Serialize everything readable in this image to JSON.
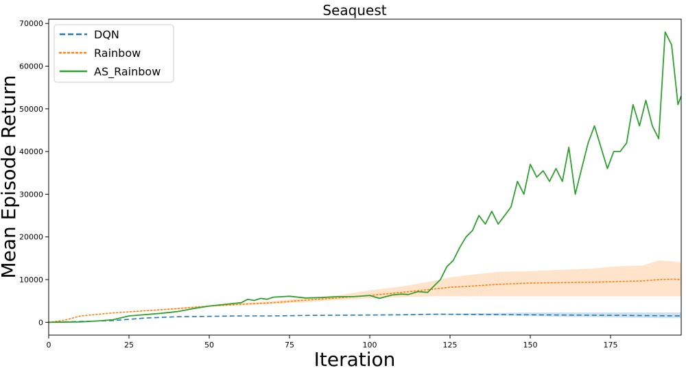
{
  "chart_data": {
    "type": "line",
    "title": "Seaquest",
    "xlabel": "Iteration",
    "ylabel": "Mean Episode Return",
    "xlim": [
      0,
      197
    ],
    "ylim": [
      -3000,
      71000
    ],
    "x_ticks": [
      0,
      25,
      50,
      75,
      100,
      125,
      150,
      175
    ],
    "y_ticks": [
      0,
      10000,
      20000,
      30000,
      40000,
      50000,
      60000,
      70000
    ],
    "grid": false,
    "legend": "top-left",
    "series": [
      {
        "name": "DQN",
        "style": "dashed",
        "color": "#1f77b4",
        "x": [
          0,
          10,
          20,
          30,
          40,
          50,
          60,
          70,
          80,
          90,
          100,
          110,
          120,
          130,
          140,
          150,
          160,
          170,
          180,
          190,
          197
        ],
        "values": [
          0,
          200,
          400,
          1000,
          1300,
          1400,
          1500,
          1500,
          1600,
          1650,
          1700,
          1750,
          1900,
          1850,
          1800,
          1750,
          1700,
          1650,
          1600,
          1550,
          1500
        ],
        "band_lower": [
          0,
          200,
          400,
          1000,
          1300,
          1400,
          1500,
          1500,
          1600,
          1650,
          1700,
          1700,
          1800,
          1700,
          1600,
          1500,
          1300,
          1200,
          1100,
          1000,
          1000
        ],
        "band_upper": [
          0,
          200,
          400,
          1000,
          1300,
          1400,
          1500,
          1500,
          1600,
          1650,
          1700,
          1800,
          2000,
          2100,
          2200,
          2300,
          2300,
          2300,
          2300,
          2300,
          2300
        ]
      },
      {
        "name": "Rainbow",
        "style": "dotted",
        "color": "#ff7f0e",
        "x": [
          0,
          5,
          10,
          20,
          30,
          40,
          50,
          60,
          70,
          80,
          90,
          100,
          110,
          120,
          125,
          130,
          140,
          150,
          160,
          170,
          175,
          180,
          185,
          190,
          195,
          197
        ],
        "values": [
          0,
          500,
          1500,
          2200,
          2700,
          3200,
          3800,
          4200,
          4600,
          5200,
          5700,
          6300,
          7000,
          7800,
          8200,
          8400,
          8900,
          9200,
          9300,
          9400,
          9500,
          9600,
          9700,
          10000,
          10100,
          10000
        ],
        "band_lower": [
          0,
          500,
          1500,
          2200,
          2600,
          3000,
          3600,
          4000,
          4300,
          4700,
          5200,
          5600,
          5900,
          6100,
          6100,
          6100,
          6100,
          6100,
          6100,
          6100,
          6100,
          6100,
          6100,
          6100,
          6100,
          6100
        ],
        "band_upper": [
          0,
          500,
          1500,
          2200,
          2800,
          3400,
          4000,
          4500,
          5000,
          5700,
          6300,
          7500,
          8400,
          9700,
          10500,
          11000,
          11800,
          12000,
          12300,
          12600,
          13000,
          13200,
          13300,
          14500,
          14200,
          14000
        ]
      },
      {
        "name": "AS_Rainbow",
        "style": "solid",
        "color": "#2ca02c",
        "x": [
          0,
          10,
          15,
          20,
          25,
          30,
          35,
          40,
          45,
          50,
          55,
          60,
          62,
          64,
          66,
          68,
          70,
          75,
          80,
          85,
          90,
          95,
          100,
          103,
          105,
          107,
          110,
          112,
          115,
          118,
          120,
          122,
          124,
          126,
          128,
          130,
          132,
          134,
          136,
          138,
          140,
          142,
          144,
          146,
          148,
          150,
          152,
          154,
          156,
          158,
          160,
          162,
          164,
          166,
          168,
          170,
          172,
          174,
          176,
          178,
          180,
          182,
          184,
          186,
          188,
          190,
          192,
          194,
          196,
          197
        ],
        "values": [
          0,
          100,
          300,
          600,
          1500,
          1800,
          2100,
          2500,
          3200,
          3800,
          4200,
          4600,
          5400,
          5100,
          5600,
          5400,
          5900,
          6100,
          5700,
          5800,
          6000,
          6000,
          6300,
          5600,
          6000,
          6400,
          6600,
          6500,
          7200,
          7000,
          8500,
          10000,
          13000,
          14500,
          17500,
          20000,
          21500,
          25000,
          23000,
          26000,
          23000,
          25000,
          27000,
          33000,
          30000,
          37000,
          34000,
          35500,
          33000,
          36000,
          33000,
          41000,
          30000,
          36000,
          42000,
          46000,
          41000,
          36000,
          40000,
          40000,
          42000,
          51000,
          46000,
          52000,
          46000,
          43000,
          68000,
          65000,
          51000,
          53000
        ],
        "band_lower": [],
        "band_upper": []
      }
    ]
  },
  "legend": {
    "items": [
      {
        "label": "DQN"
      },
      {
        "label": "Rainbow"
      },
      {
        "label": "AS_Rainbow"
      }
    ]
  }
}
